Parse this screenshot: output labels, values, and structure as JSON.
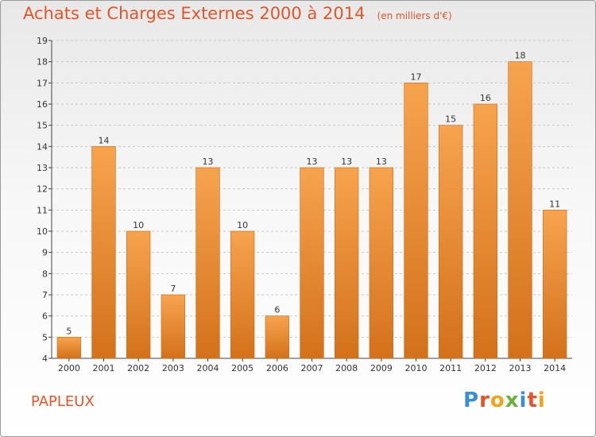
{
  "header": {
    "title": "Achats et Charges Externes 2000 à 2014",
    "unit": "(en milliers d'€)"
  },
  "footer": {
    "commune": "PAPLEUX",
    "logo": "Proxiti",
    "logo_colors": [
      "#3a8fd4",
      "#e8542a",
      "#f1a31b",
      "#6cb23a",
      "#3a8fd4",
      "#e8542a",
      "#f1a31b"
    ]
  },
  "colors": {
    "title": "#e0562a",
    "bar_top": "#f7a34e",
    "bar_bottom": "#d4711b",
    "bar_edge": "#c96a18",
    "grid": "#c8c8c8",
    "axis": "#444444"
  },
  "chart_data": {
    "type": "bar",
    "categories": [
      "2000",
      "2001",
      "2002",
      "2003",
      "2004",
      "2005",
      "2006",
      "2007",
      "2008",
      "2009",
      "2010",
      "2011",
      "2012",
      "2013",
      "2014"
    ],
    "values": [
      5,
      14,
      10,
      7,
      13,
      10,
      6,
      13,
      13,
      13,
      17,
      15,
      16,
      18,
      11
    ],
    "ylim": [
      4,
      19
    ],
    "yticks": [
      4,
      5,
      6,
      7,
      8,
      9,
      10,
      11,
      12,
      13,
      14,
      15,
      16,
      17,
      18,
      19
    ],
    "grid": true,
    "data_labels": true
  }
}
